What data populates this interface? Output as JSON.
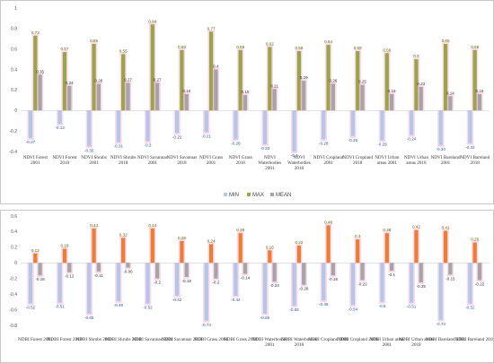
{
  "chart_data": [
    {
      "type": "bar",
      "categories": [
        "NDVI Forest 2001",
        "NDVI Forest 2018",
        "NDVI Shrubs 2001",
        "NDVI Shrubs 2018",
        "NDVI Savannas 2001",
        "NDVI Savannas 2018",
        "NDVI Grass 2001",
        "NDVI Grass 2018",
        "NDVI Waterbodies 2001",
        "NDVI Waterbodies 2018",
        "NDVI Cropland 2001",
        "NDVI Cropland 2018",
        "NDVI Urban areas 2001",
        "NDVI Urban areas 2018",
        "NDVI Bareland 2001",
        "NDVI Bareland 2018"
      ],
      "series": [
        {
          "name": "MIN",
          "values": [
            -0.27,
            -0.13,
            -0.35,
            -0.31,
            -0.3,
            -0.22,
            -0.21,
            -0.28,
            -0.33,
            -0.4,
            -0.28,
            -0.25,
            -0.29,
            -0.24,
            -0.34,
            -0.32
          ]
        },
        {
          "name": "MAX",
          "values": [
            0.73,
            0.57,
            0.65,
            0.55,
            0.84,
            0.59,
            0.77,
            0.59,
            0.62,
            0.58,
            0.64,
            0.58,
            0.56,
            0.5,
            0.65,
            0.59
          ]
        },
        {
          "name": "MEAN",
          "values": [
            0.35,
            0.24,
            0.26,
            0.27,
            0.27,
            0.16,
            0.4,
            0.15,
            0.21,
            0.29,
            0.26,
            0.25,
            0.16,
            0.23,
            0.14,
            0.16
          ]
        }
      ],
      "ylim": [
        -0.4,
        1.0
      ],
      "yticks": [
        "-0.4",
        "-0.2",
        "0",
        "0.2",
        "0.4",
        "0.6",
        "0.8",
        "1"
      ],
      "legend_position": "bottom-center",
      "grid": false
    },
    {
      "type": "bar",
      "categories": [
        "NDBI Forest 2001",
        "NDBI Forest 2018",
        "NDBI Shrubs 2001",
        "NDBI Shrubs 2018",
        "NDBI Savannas 2001",
        "NDBI Savannas 2018",
        "NDBI Grass 2001",
        "NDBI Grass 2018",
        "NDBI Waterbodies 2001",
        "NDBI Waterbodies 2018",
        "NDBI Cropland 2001",
        "NDBI Cropland 2018",
        "NDBI Urban areas 2001",
        "NDBI Urban areas 2018",
        "NDBI Bareland 2001",
        "NDBI Bareland 2018"
      ],
      "series": [
        {
          "name": "MIN",
          "values": [
            -0.52,
            -0.51,
            -0.65,
            -0.49,
            -0.52,
            -0.42,
            -0.74,
            -0.42,
            -0.65,
            -0.55,
            -0.48,
            -0.54,
            -0.5,
            -0.51,
            -0.73,
            -0.52
          ]
        },
        {
          "name": "MAX",
          "values": [
            0.12,
            0.18,
            0.44,
            0.32,
            0.44,
            0.28,
            0.24,
            0.38,
            0.16,
            0.22,
            0.48,
            0.3,
            0.38,
            0.42,
            0.41,
            0.26
          ]
        },
        {
          "name": "MEAN",
          "values": [
            -0.16,
            -0.12,
            -0.11,
            -0.06,
            -0.2,
            -0.18,
            -0.2,
            -0.14,
            -0.24,
            -0.28,
            -0.16,
            -0.22,
            -0.1,
            -0.25,
            -0.15,
            -0.22
          ]
        }
      ],
      "ylim": [
        -0.8,
        0.6
      ],
      "yticks": [
        "-0.8",
        "-0.6",
        "-0.4",
        "-0.2",
        "0",
        "0.2",
        "0.4",
        "0.6"
      ],
      "grid": false
    }
  ],
  "colors": {
    "min": "#b4c7e7",
    "max_top": "#9aa548",
    "max_bottom": "#ed7d31",
    "mean": "#a5a5a5",
    "pink_fringe": "#f6a9d2"
  }
}
